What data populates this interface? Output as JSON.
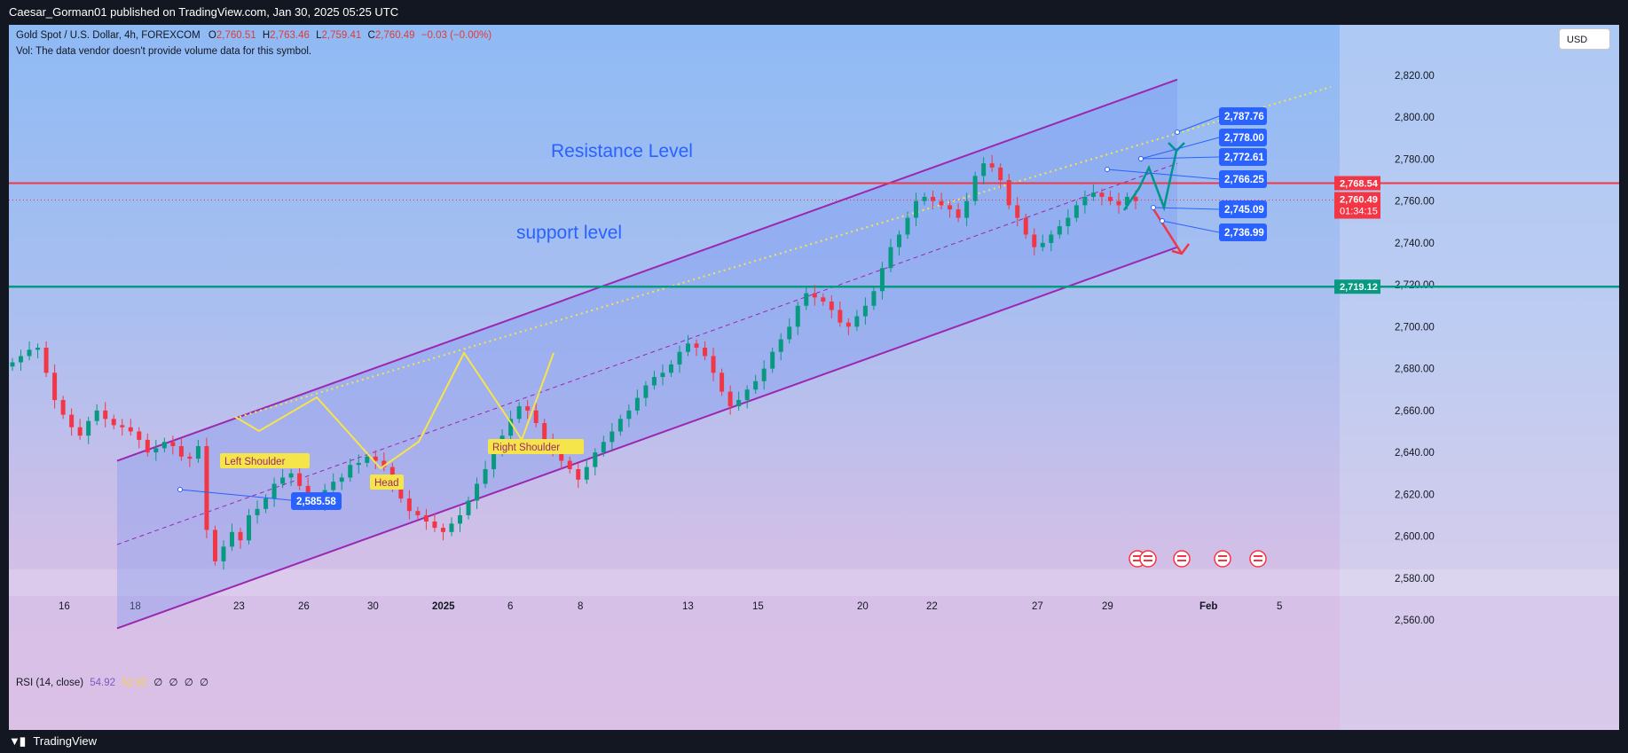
{
  "header": {
    "published_by": "Caesar_Gorman01 published on TradingView.com, Jan 30, 2025 05:25 UTC"
  },
  "footer": {
    "brand": "TradingView"
  },
  "legend": {
    "symbol": "Gold Spot / U.S. Dollar, 4h, FOREXCOM",
    "ohlc": [
      {
        "key": "O",
        "value": "2,760.51"
      },
      {
        "key": "H",
        "value": "2,763.46"
      },
      {
        "key": "L",
        "value": "2,759.41"
      },
      {
        "key": "C",
        "value": "2,760.49"
      }
    ],
    "change": "−0.03 (−0.00%)",
    "vol_note": "Vol: The data vendor doesn't provide volume data for this symbol."
  },
  "currency_button": "USD",
  "rsi": {
    "label": "RSI (14, close)",
    "value1": "54.92",
    "value2": "52.82",
    "extras": [
      "∅",
      "∅",
      "∅",
      "∅"
    ],
    "colors": {
      "value1": "#7e57c2",
      "value2": "#f5d046"
    }
  },
  "colors": {
    "up": "#089981",
    "down": "#f23645",
    "channel": "#9c27b0",
    "resistance": "#f23645",
    "support": "#089981",
    "callout": "#2962ff"
  },
  "chart_data": {
    "type": "candlestick",
    "title": "Gold Spot / U.S. Dollar, 4h, FOREXCOM",
    "y_axis": {
      "ticks": [
        "2,560.00",
        "2,580.00",
        "2,600.00",
        "2,620.00",
        "2,640.00",
        "2,660.00",
        "2,680.00",
        "2,700.00",
        "2,720.00",
        "2,740.00",
        "2,760.00",
        "2,780.00",
        "2,800.00",
        "2,820.00"
      ],
      "range": [
        2548,
        2830
      ]
    },
    "x_axis": {
      "ticks": [
        "16",
        "18",
        "23",
        "26",
        "30",
        "2025",
        "6",
        "8",
        "13",
        "15",
        "20",
        "22",
        "27",
        "29",
        "Feb",
        "5"
      ]
    },
    "candles": {
      "description": "Approximate 4h closes read from the chart (left to right)",
      "closes": [
        2683,
        2686,
        2689,
        2690,
        2678,
        2665,
        2658,
        2652,
        2648,
        2655,
        2660,
        2656,
        2653,
        2652,
        2650,
        2646,
        2640,
        2642,
        2645,
        2643,
        2638,
        2637,
        2643,
        2603,
        2588,
        2595,
        2602,
        2598,
        2610,
        2613,
        2618,
        2625,
        2628,
        2630,
        2624,
        2618,
        2616,
        2622,
        2626,
        2628,
        2634,
        2635,
        2638,
        2636,
        2633,
        2625,
        2618,
        2612,
        2610,
        2607,
        2604,
        2602,
        2606,
        2610,
        2617,
        2625,
        2632,
        2640,
        2648,
        2656,
        2662,
        2660,
        2654,
        2646,
        2640,
        2636,
        2632,
        2627,
        2633,
        2640,
        2645,
        2650,
        2656,
        2660,
        2666,
        2672,
        2676,
        2678,
        2682,
        2688,
        2692,
        2690,
        2686,
        2678,
        2669,
        2662,
        2665,
        2670,
        2674,
        2680,
        2688,
        2694,
        2700,
        2710,
        2716,
        2714,
        2712,
        2708,
        2702,
        2700,
        2705,
        2710,
        2717,
        2728,
        2738,
        2744,
        2752,
        2760,
        2762,
        2760,
        2758,
        2756,
        2752,
        2760,
        2772,
        2778,
        2776,
        2770,
        2758,
        2752,
        2744,
        2738,
        2740,
        2744,
        2748,
        2752,
        2758,
        2762,
        2764,
        2762,
        2760,
        2758,
        2762,
        2760
      ]
    },
    "channel": {
      "upper": [
        {
          "x": "Dec 17",
          "y": 2636
        },
        {
          "x": "Jan 30",
          "y": 2818
        }
      ],
      "lower": [
        {
          "x": "Dec 17",
          "y": 2556
        },
        {
          "x": "Jan 30",
          "y": 2738
        }
      ]
    },
    "horizontal_lines": [
      {
        "name": "Resistance Level",
        "value": 2768.54,
        "label": "2,768.54"
      },
      {
        "name": "support level",
        "value": 2719.12,
        "label": "2,719.12"
      }
    ],
    "price_labels": {
      "last": "2,760.49",
      "countdown": "01:34:15"
    },
    "annotations": {
      "resistance_text": "Resistance Level",
      "support_text": "support level",
      "pattern_labels": [
        "Left Shoulder",
        "Head",
        "Right Shoulder"
      ],
      "callouts": [
        "2,787.76",
        "2,778.00",
        "2,772.61",
        "2,766.25",
        "2,745.09",
        "2,736.99",
        "2,585.58"
      ]
    }
  }
}
